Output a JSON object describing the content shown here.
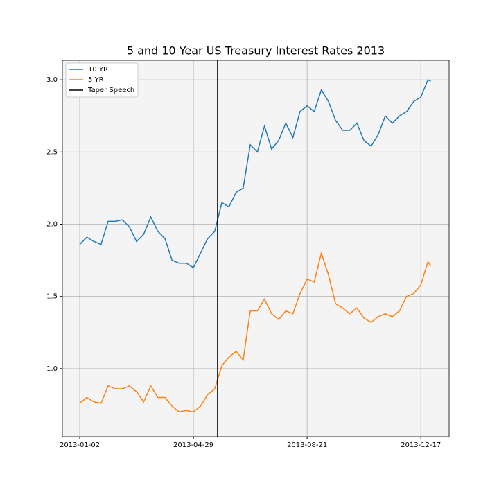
{
  "chart_data": {
    "type": "line",
    "title": "5 and 10 Year US Treasury Interest Rates 2013",
    "x": [
      0,
      5,
      10,
      15,
      20,
      25,
      30,
      35,
      40,
      45,
      50,
      55,
      60,
      65,
      70,
      75,
      80,
      85,
      90,
      95,
      100,
      105,
      110,
      115,
      120,
      125,
      130,
      135,
      140,
      145,
      150,
      155,
      160,
      165,
      170,
      175,
      180,
      185,
      190,
      195,
      200,
      205,
      210,
      215,
      220,
      225,
      230,
      235,
      240,
      245,
      247
    ],
    "series": [
      {
        "name": "10 YR",
        "color": "#1f77b4",
        "values": [
          1.86,
          1.91,
          1.88,
          1.86,
          2.02,
          2.02,
          2.03,
          1.98,
          1.88,
          1.93,
          2.05,
          1.95,
          1.9,
          1.75,
          1.73,
          1.73,
          1.7,
          1.8,
          1.9,
          1.95,
          2.15,
          2.12,
          2.22,
          2.25,
          2.55,
          2.5,
          2.68,
          2.52,
          2.58,
          2.7,
          2.6,
          2.78,
          2.82,
          2.78,
          2.93,
          2.85,
          2.72,
          2.65,
          2.65,
          2.7,
          2.58,
          2.54,
          2.62,
          2.75,
          2.7,
          2.75,
          2.78,
          2.85,
          2.88,
          3.0,
          2.99
        ]
      },
      {
        "name": "5 YR",
        "color": "#ff7f0e",
        "values": [
          0.76,
          0.8,
          0.77,
          0.76,
          0.88,
          0.86,
          0.86,
          0.88,
          0.84,
          0.77,
          0.88,
          0.8,
          0.8,
          0.74,
          0.7,
          0.71,
          0.7,
          0.74,
          0.82,
          0.86,
          1.02,
          1.08,
          1.12,
          1.06,
          1.4,
          1.4,
          1.48,
          1.38,
          1.34,
          1.4,
          1.38,
          1.52,
          1.62,
          1.6,
          1.8,
          1.65,
          1.45,
          1.42,
          1.38,
          1.42,
          1.35,
          1.32,
          1.36,
          1.38,
          1.36,
          1.4,
          1.5,
          1.52,
          1.58,
          1.74,
          1.71
        ]
      }
    ],
    "vlines": [
      {
        "name": "Taper Speech",
        "x": 97,
        "color": "#000000"
      }
    ],
    "xlim": [
      -12.2,
      259.9
    ],
    "xticks": [
      {
        "value": 0,
        "label": "2013-01-02"
      },
      {
        "value": 80,
        "label": "2013-04-29"
      },
      {
        "value": 160,
        "label": "2013-08-21"
      },
      {
        "value": 240,
        "label": "2013-12-17"
      }
    ],
    "ylim": [
      0.529,
      3.135
    ],
    "yticks": [
      {
        "value": 1.0,
        "label": "1.0"
      },
      {
        "value": 1.5,
        "label": "1.5"
      },
      {
        "value": 2.0,
        "label": "2.0"
      },
      {
        "value": 2.5,
        "label": "2.5"
      },
      {
        "value": 3.0,
        "label": "3.0"
      }
    ],
    "grid": true,
    "legend": "upper-left"
  }
}
